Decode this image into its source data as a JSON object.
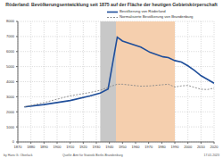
{
  "chart_data": {
    "type": "line",
    "title": "Röderland: Bevölkerungsentwicklung seit 1875 auf der Fläche der heutigen Gebietskörperschaft",
    "x": [
      1875,
      1890,
      1910,
      1925,
      1933,
      1939,
      1946,
      1950,
      1964,
      1971,
      1981,
      1985,
      1990,
      1995,
      2000,
      2005,
      2010,
      2015,
      2020
    ],
    "series": [
      {
        "name": "Bevölkerung von Röderland",
        "color": "#1f4e9a",
        "line_style": "solid",
        "values": [
          2330,
          2480,
          2750,
          3050,
          3250,
          3520,
          6950,
          6700,
          6300,
          5950,
          5650,
          5600,
          5400,
          5300,
          5050,
          4750,
          4400,
          4150,
          3900
        ]
      },
      {
        "name": "Normalisierte Bevölkerung von Brandenburg",
        "color": "#888888",
        "line_style": "dashed",
        "values": [
          2330,
          2610,
          3060,
          3280,
          3430,
          3630,
          3830,
          3830,
          3700,
          3720,
          3800,
          3830,
          3650,
          3720,
          3750,
          3620,
          3500,
          3480,
          3570
        ]
      }
    ],
    "periods": [
      {
        "from": 1933,
        "to": 1945,
        "color": "#c8c8c8"
      },
      {
        "from": 1945,
        "to": 1990,
        "color": "#f5cfae"
      }
    ],
    "xlim": [
      1870,
      2020
    ],
    "xticks": [
      1870,
      1880,
      1890,
      1900,
      1910,
      1920,
      1930,
      1940,
      1950,
      1960,
      1970,
      1980,
      1990,
      2000,
      2010,
      2020
    ],
    "ylim": [
      0,
      8000
    ],
    "yticks": [
      0,
      1000,
      2000,
      3000,
      4000,
      5000,
      6000,
      7000,
      8000
    ],
    "grid": true,
    "annotations": [
      "by Hans G. Oberlack",
      "Quelle: Amt für Statistik Berlin-Brandenburg",
      "17.01.2023"
    ]
  }
}
